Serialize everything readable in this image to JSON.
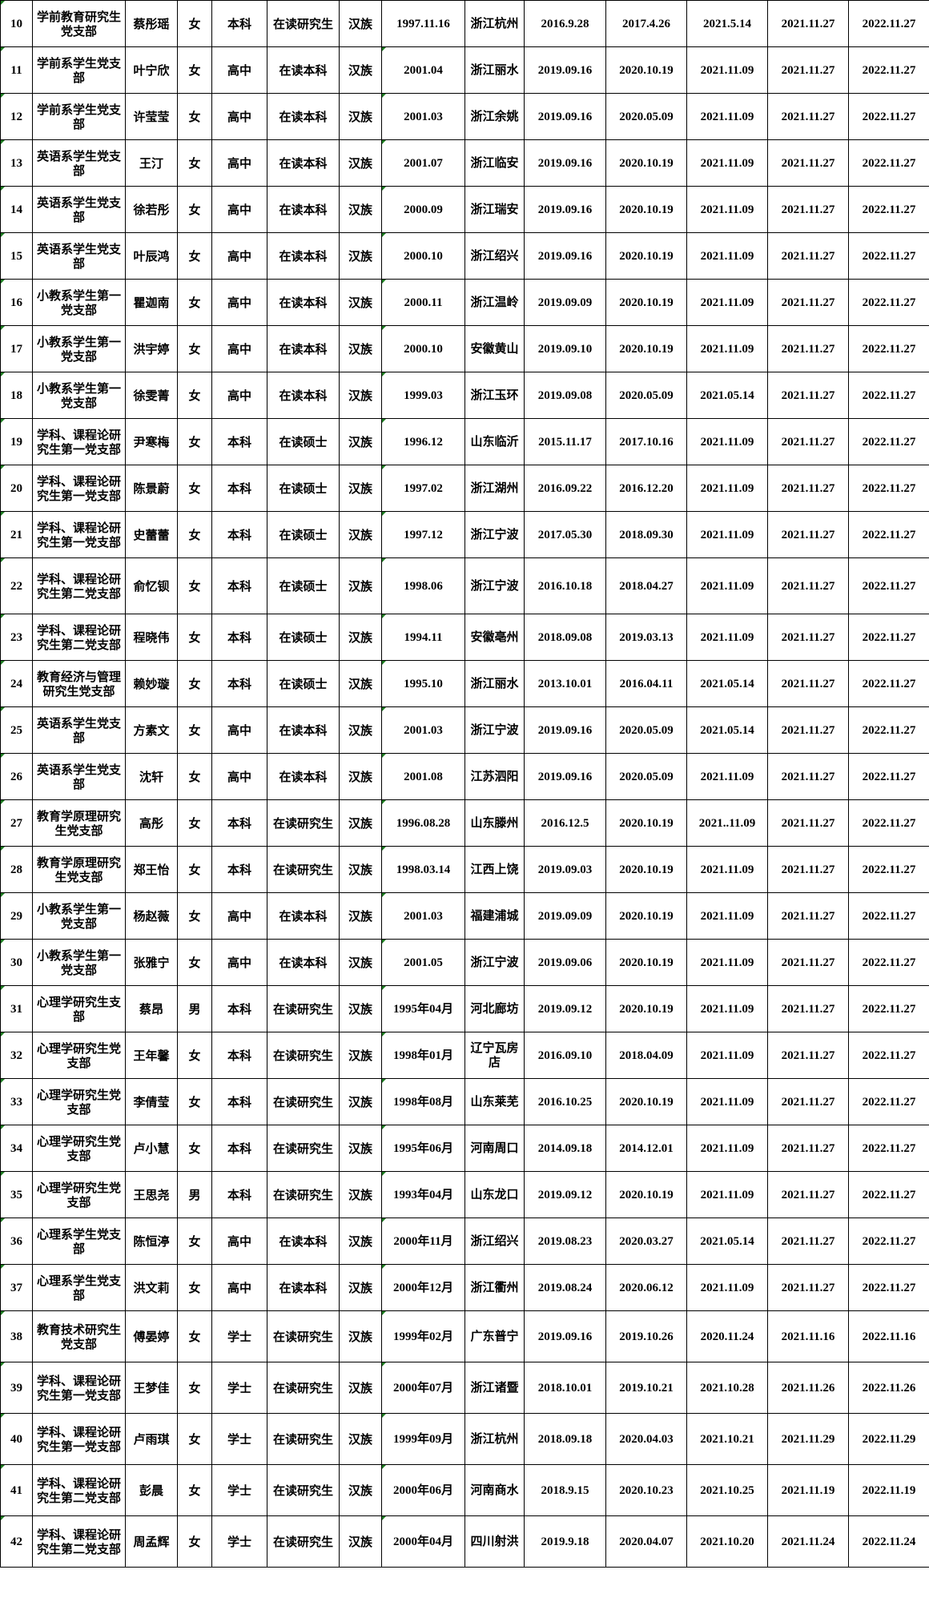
{
  "colors": {
    "grid": "#000000",
    "text_marker": "#1e7d22"
  },
  "rows": [
    [
      "10",
      "学前教育研究生党支部",
      "蔡彤瑶",
      "女",
      "本科",
      "在读研究生",
      "汉族",
      "1997.11.16",
      "浙江杭州",
      "2016.9.28",
      "2017.4.26",
      "2021.5.14",
      "2021.11.27",
      "2022.11.27"
    ],
    [
      "11",
      "学前系学生党支部",
      "叶宁欣",
      "女",
      "高中",
      "在读本科",
      "汉族",
      "2001.04",
      "浙江丽水",
      "2019.09.16",
      "2020.10.19",
      "2021.11.09",
      "2021.11.27",
      "2022.11.27"
    ],
    [
      "12",
      "学前系学生党支部",
      "许莹莹",
      "女",
      "高中",
      "在读本科",
      "汉族",
      "2001.03",
      "浙江余姚",
      "2019.09.16",
      "2020.05.09",
      "2021.11.09",
      "2021.11.27",
      "2022.11.27"
    ],
    [
      "13",
      "英语系学生党支部",
      "王汀",
      "女",
      "高中",
      "在读本科",
      "汉族",
      "2001.07",
      "浙江临安",
      "2019.09.16",
      "2020.10.19",
      "2021.11.09",
      "2021.11.27",
      "2022.11.27"
    ],
    [
      "14",
      "英语系学生党支部",
      "徐若彤",
      "女",
      "高中",
      "在读本科",
      "汉族",
      "2000.09",
      "浙江瑞安",
      "2019.09.16",
      "2020.10.19",
      "2021.11.09",
      "2021.11.27",
      "2022.11.27"
    ],
    [
      "15",
      "英语系学生党支部",
      "叶辰鸿",
      "女",
      "高中",
      "在读本科",
      "汉族",
      "2000.10",
      "浙江绍兴",
      "2019.09.16",
      "2020.10.19",
      "2021.11.09",
      "2021.11.27",
      "2022.11.27"
    ],
    [
      "16",
      "小教系学生第一党支部",
      "瞿迦南",
      "女",
      "高中",
      "在读本科",
      "汉族",
      "2000.11",
      "浙江温岭",
      "2019.09.09",
      "2020.10.19",
      "2021.11.09",
      "2021.11.27",
      "2022.11.27"
    ],
    [
      "17",
      "小教系学生第一党支部",
      "洪宇婷",
      "女",
      "高中",
      "在读本科",
      "汉族",
      "2000.10",
      "安徽黄山",
      "2019.09.10",
      "2020.10.19",
      "2021.11.09",
      "2021.11.27",
      "2022.11.27"
    ],
    [
      "18",
      "小教系学生第一党支部",
      "徐雯菁",
      "女",
      "高中",
      "在读本科",
      "汉族",
      "1999.03",
      "浙江玉环",
      "2019.09.08",
      "2020.05.09",
      "2021.05.14",
      "2021.11.27",
      "2022.11.27"
    ],
    [
      "19",
      "学科、课程论研究生第一党支部",
      "尹寒梅",
      "女",
      "本科",
      "在读硕士",
      "汉族",
      "1996.12",
      "山东临沂",
      "2015.11.17",
      "2017.10.16",
      "2021.11.09",
      "2021.11.27",
      "2022.11.27"
    ],
    [
      "20",
      "学科、课程论研究生第一党支部",
      "陈景蔚",
      "女",
      "本科",
      "在读硕士",
      "汉族",
      "1997.02",
      "浙江湖州",
      "2016.09.22",
      "2016.12.20",
      "2021.11.09",
      "2021.11.27",
      "2022.11.27"
    ],
    [
      "21",
      "学科、课程论研究生第一党支部",
      "史蕾蕾",
      "女",
      "本科",
      "在读硕士",
      "汉族",
      "1997.12",
      "浙江宁波",
      "2017.05.30",
      "2018.09.30",
      "2021.11.09",
      "2021.11.27",
      "2022.11.27"
    ],
    [
      "22",
      "学科、课程论研究生第二党支部",
      "俞忆钡",
      "女",
      "本科",
      "在读硕士",
      "汉族",
      "1998.06",
      "浙江宁波",
      "2016.10.18",
      "2018.04.27",
      "2021.11.09",
      "2021.11.27",
      "2022.11.27"
    ],
    [
      "23",
      "学科、课程论研究生第二党支部",
      "程晓伟",
      "女",
      "本科",
      "在读硕士",
      "汉族",
      "1994.11",
      "安徽亳州",
      "2018.09.08",
      "2019.03.13",
      "2021.11.09",
      "2021.11.27",
      "2022.11.27"
    ],
    [
      "24",
      "教育经济与管理研究生党支部",
      "赖妙璇",
      "女",
      "本科",
      "在读硕士",
      "汉族",
      "1995.10",
      "浙江丽水",
      "2013.10.01",
      "2016.04.11",
      "2021.05.14",
      "2021.11.27",
      "2022.11.27"
    ],
    [
      "25",
      "英语系学生党支部",
      "方素文",
      "女",
      "高中",
      "在读本科",
      "汉族",
      "2001.03",
      "浙江宁波",
      "2019.09.16",
      "2020.05.09",
      "2021.05.14",
      "2021.11.27",
      "2022.11.27"
    ],
    [
      "26",
      "英语系学生党支部",
      "沈轩",
      "女",
      "高中",
      "在读本科",
      "汉族",
      "2001.08",
      "江苏泗阳",
      "2019.09.16",
      "2020.05.09",
      "2021.11.09",
      "2021.11.27",
      "2022.11.27"
    ],
    [
      "27",
      "教育学原理研究生党支部",
      "高彤",
      "女",
      "本科",
      "在读研究生",
      "汉族",
      "1996.08.28",
      "山东滕州",
      "2016.12.5",
      "2020.10.19",
      "2021..11.09",
      "2021.11.27",
      "2022.11.27"
    ],
    [
      "28",
      "教育学原理研究生党支部",
      "郑王怡",
      "女",
      "本科",
      "在读研究生",
      "汉族",
      "1998.03.14",
      "江西上饶",
      "2019.09.03",
      "2020.10.19",
      "2021.11.09",
      "2021.11.27",
      "2022.11.27"
    ],
    [
      "29",
      "小教系学生第一党支部",
      "杨赵薇",
      "女",
      "高中",
      "在读本科",
      "汉族",
      "2001.03",
      "福建浦城",
      "2019.09.09",
      "2020.10.19",
      "2021.11.09",
      "2021.11.27",
      "2022.11.27"
    ],
    [
      "30",
      "小教系学生第一党支部",
      "张雅宁",
      "女",
      "高中",
      "在读本科",
      "汉族",
      "2001.05",
      "浙江宁波",
      "2019.09.06",
      "2020.10.19",
      "2021.11.09",
      "2021.11.27",
      "2022.11.27"
    ],
    [
      "31",
      "心理学研究生支部",
      "蔡昂",
      "男",
      "本科",
      "在读研究生",
      "汉族",
      "1995年04月",
      "河北廊坊",
      "2019.09.12",
      "2020.10.19",
      "2021.11.09",
      "2021.11.27",
      "2022.11.27"
    ],
    [
      "32",
      "心理学研究生党支部",
      "王年馨",
      "女",
      "本科",
      "在读研究生",
      "汉族",
      "1998年01月",
      "辽宁瓦房店",
      "2016.09.10",
      "2018.04.09",
      "2021.11.09",
      "2021.11.27",
      "2022.11.27"
    ],
    [
      "33",
      "心理学研究生党支部",
      "李倩莹",
      "女",
      "本科",
      "在读研究生",
      "汉族",
      "1998年08月",
      "山东莱芜",
      "2016.10.25",
      "2020.10.19",
      "2021.11.09",
      "2021.11.27",
      "2022.11.27"
    ],
    [
      "34",
      "心理学研究生党支部",
      "卢小慧",
      "女",
      "本科",
      "在读研究生",
      "汉族",
      "1995年06月",
      "河南周口",
      "2014.09.18",
      "2014.12.01",
      "2021.11.09",
      "2021.11.27",
      "2022.11.27"
    ],
    [
      "35",
      "心理学研究生党支部",
      "王思尧",
      "男",
      "本科",
      "在读研究生",
      "汉族",
      "1993年04月",
      "山东龙口",
      "2019.09.12",
      "2020.10.19",
      "2021.11.09",
      "2021.11.27",
      "2022.11.27"
    ],
    [
      "36",
      "心理系学生党支部",
      "陈恒渟",
      "女",
      "高中",
      "在读本科",
      "汉族",
      "2000年11月",
      "浙江绍兴",
      "2019.08.23",
      "2020.03.27",
      "2021.05.14",
      "2021.11.27",
      "2022.11.27"
    ],
    [
      "37",
      "心理系学生党支部",
      "洪文莉",
      "女",
      "高中",
      "在读本科",
      "汉族",
      "2000年12月",
      "浙江衢州",
      "2019.08.24",
      "2020.06.12",
      "2021.11.09",
      "2021.11.27",
      "2022.11.27"
    ],
    [
      "38",
      "教育技术研究生党支部",
      "傅晏婷",
      "女",
      "学士",
      "在读研究生",
      "汉族",
      "1999年02月",
      "广东普宁",
      "2019.09.16",
      "2019.10.26",
      "2020.11.24",
      "2021.11.16",
      "2022.11.16"
    ],
    [
      "39",
      "学科、课程论研究生第一党支部",
      "王梦佳",
      "女",
      "学士",
      "在读研究生",
      "汉族",
      "2000年07月",
      "浙江诸暨",
      "2018.10.01",
      "2019.10.21",
      "2021.10.28",
      "2021.11.26",
      "2022.11.26"
    ],
    [
      "40",
      "学科、课程论研究生第一党支部",
      "卢雨琪",
      "女",
      "学士",
      "在读研究生",
      "汉族",
      "1999年09月",
      "浙江杭州",
      "2018.09.18",
      "2020.04.03",
      "2021.10.21",
      "2021.11.29",
      "2022.11.29"
    ],
    [
      "41",
      "学科、课程论研究生第二党支部",
      "彭晨",
      "女",
      "学士",
      "在读研究生",
      "汉族",
      "2000年06月",
      "河南商水",
      "2018.9.15",
      "2020.10.23",
      "2021.10.25",
      "2021.11.19",
      "2022.11.19"
    ],
    [
      "42",
      "学科、课程论研究生第二党支部",
      "周孟辉",
      "女",
      "学士",
      "在读研究生",
      "汉族",
      "2000年04月",
      "四川射洪",
      "2019.9.18",
      "2020.04.07",
      "2021.10.20",
      "2021.11.24",
      "2022.11.24"
    ]
  ]
}
